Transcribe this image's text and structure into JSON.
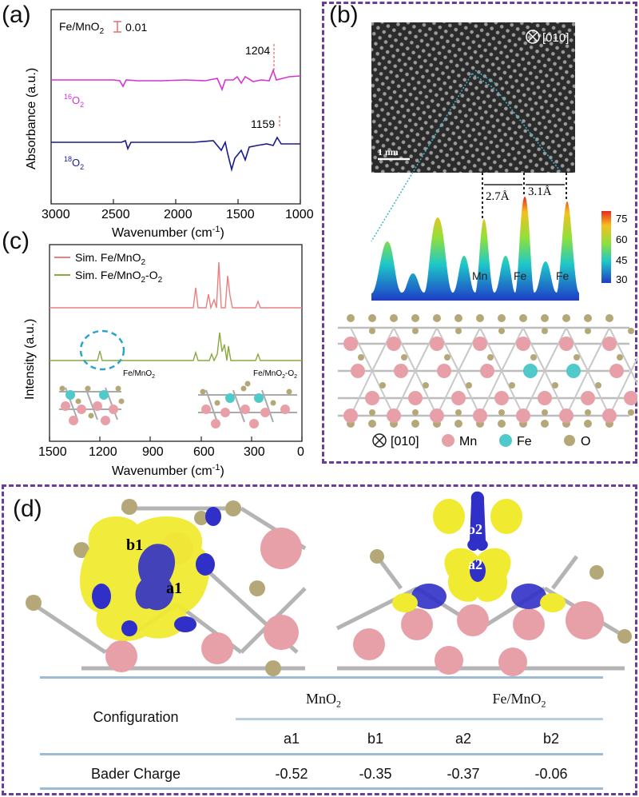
{
  "panel_a": {
    "label": "(a)",
    "legend_text": "Fe/MnO",
    "legend_sub": "2",
    "scale_value": "0.01",
    "ylabel": "Absorbance (a.u.)",
    "xlabel": "Wavenumber (cm",
    "xlabel_sup": "-1",
    "xlabel_end": ")",
    "ticks": [
      "3000",
      "2500",
      "2000",
      "1500",
      "1000"
    ],
    "trace_16_label_sup": "16",
    "trace_16_label": "O",
    "trace_16_label_sub": "2",
    "trace_18_label_sup": "18",
    "trace_18_label": "O",
    "trace_18_label_sub": "2",
    "peak_16": "1204",
    "peak_18": "1159",
    "color_16": "#d633d6",
    "color_18": "#1a1a8c"
  },
  "panel_b": {
    "label": "(b)",
    "zone_axis": "[010]",
    "scale_bar": "1 nm",
    "dist1": "2.7Å",
    "dist2": "3.1Å",
    "peak_labels": [
      "Mn",
      "Fe",
      "Fe"
    ],
    "colorbar_ticks": [
      "75",
      "60",
      "45",
      "30"
    ],
    "legend_axis": "[010]",
    "legend_mn": "Mn",
    "legend_fe": "Fe",
    "legend_o": "O",
    "color_mn": "#e8a0a8",
    "color_fe": "#4fc9c9",
    "color_o": "#b5a878"
  },
  "panel_c": {
    "label": "(c)",
    "legend1": "Sim. Fe/MnO",
    "legend1_sub": "2",
    "legend2": "Sim. Fe/MnO",
    "legend2_sub": "2",
    "legend2_end": "-O",
    "legend2_sub2": "2",
    "ylabel": "Intensity (a.u.)",
    "xlabel": "Wavenumber (cm",
    "xlabel_sup": "-1",
    "xlabel_end": ")",
    "ticks": [
      "1500",
      "1200",
      "900",
      "600",
      "300",
      "0"
    ],
    "inset1": "Fe/MnO",
    "inset1_sub": "2",
    "inset2": "Fe/MnO",
    "inset2_sub": "2",
    "inset2_end": "-O",
    "inset2_sub2": "2",
    "color1": "#e88080",
    "color2": "#8aa840"
  },
  "panel_d": {
    "label": "(d)",
    "site_b1": "b1",
    "site_a1": "a1",
    "site_b2": "b2",
    "site_a2": "a2",
    "table": {
      "row_header": "Configuration",
      "group1": "MnO",
      "group1_sub": "2",
      "group2": "Fe/MnO",
      "group2_sub": "2",
      "cols": [
        "a1",
        "b1",
        "a2",
        "b2"
      ],
      "row_label": "Bader Charge",
      "values": [
        "-0.52",
        "-0.35",
        "-0.37",
        "-0.06"
      ]
    }
  }
}
